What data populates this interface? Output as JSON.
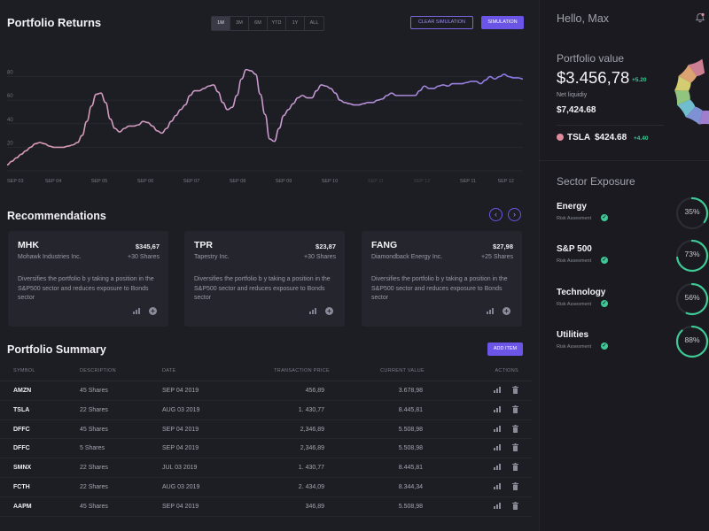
{
  "header": {
    "title": "Portfolio Returns",
    "ranges": [
      "1M",
      "3M",
      "6M",
      "YTD",
      "1Y",
      "ALL"
    ],
    "active_range": "1M",
    "clear_simulation": "CLEAR SIMULATION",
    "simulation": "SIMULATION"
  },
  "chart_data": {
    "type": "line",
    "title": "",
    "xlabel": "",
    "ylabel": "",
    "ylim": [
      0,
      100
    ],
    "yticks": [
      20,
      40,
      60,
      80
    ],
    "x_tick_labels": [
      "SEP 03",
      "SEP 04",
      "SEP 05",
      "SEP 06",
      "SEP 07",
      "SEP 08",
      "SEP 09",
      "SEP 10",
      "SEP 11",
      "SEP 12",
      "SEP 11",
      "SEP 12"
    ],
    "faded_tick_indices": [
      8,
      9
    ],
    "grid": true,
    "colors": {
      "history": "#d99bb0",
      "simulation": "#8a78e8"
    },
    "split_index": 24,
    "x": [
      0,
      0.1,
      0.2,
      0.3,
      0.4,
      0.5,
      0.6,
      0.7,
      0.8,
      0.9,
      1.0,
      1.1,
      1.2,
      1.3,
      1.4,
      1.5,
      1.6,
      1.7,
      1.8,
      1.9,
      2.0,
      2.1,
      2.2,
      2.3,
      2.4,
      2.5,
      2.6,
      2.7,
      2.8,
      2.9,
      3.0,
      3.1,
      3.2,
      3.3,
      3.4,
      3.5,
      3.6,
      3.7,
      3.8,
      3.9,
      4.0,
      4.1,
      4.2,
      4.3,
      4.4,
      4.5,
      4.6,
      4.7,
      4.8,
      4.9,
      5.0,
      5.1,
      5.2,
      5.3,
      5.4,
      5.5,
      5.6,
      5.7,
      5.8,
      5.9,
      6.0,
      6.1,
      6.2,
      6.3,
      6.4,
      6.5,
      6.6,
      6.7,
      6.8,
      6.9,
      7.0,
      7.1,
      7.2,
      7.3,
      7.4,
      7.5,
      7.6,
      7.7,
      7.8,
      7.9,
      8.0,
      8.1,
      8.2,
      8.3,
      8.4,
      8.5,
      8.6,
      8.7,
      8.8,
      8.9,
      9.0,
      9.1,
      9.2,
      9.3,
      9.4,
      9.5,
      9.6,
      9.7,
      9.8,
      9.9,
      10.0,
      10.1,
      10.2,
      10.3,
      10.4,
      10.5,
      10.6,
      10.7,
      10.8,
      10.9,
      11.0
    ],
    "y": [
      5,
      8,
      11,
      14,
      17,
      20,
      23,
      24,
      23,
      21,
      20,
      20,
      20,
      21,
      22,
      24,
      30,
      42,
      55,
      65,
      66,
      58,
      44,
      36,
      33,
      36,
      38,
      38,
      39,
      42,
      41,
      38,
      34,
      32,
      36,
      42,
      47,
      52,
      56,
      64,
      68,
      68,
      70,
      72,
      73,
      67,
      58,
      52,
      54,
      64,
      78,
      86,
      85,
      82,
      65,
      48,
      27,
      25,
      36,
      47,
      52,
      57,
      62,
      64,
      62,
      62,
      68,
      73,
      72,
      70,
      66,
      60,
      58,
      57,
      56,
      56,
      57,
      58,
      58,
      60,
      61,
      64,
      66,
      64,
      64,
      64,
      64,
      64,
      68,
      72,
      70,
      70,
      72,
      73,
      72,
      74,
      74,
      74,
      75,
      76,
      76,
      74,
      77,
      80,
      78,
      80,
      82,
      80,
      79,
      79,
      78
    ]
  },
  "recommendations": {
    "title": "Recommendations",
    "prev_icon": "chevron-left-icon",
    "next_icon": "chevron-right-icon",
    "cards": [
      {
        "symbol": "MHK",
        "price": "$345,67",
        "company": "Mohawk Industries Inc.",
        "shares": "+30 Shares",
        "description": "Diversifies the portfolio b y taking a position in the S&P500 sector and reduces exposure to Bonds sector"
      },
      {
        "symbol": "TPR",
        "price": "$23,87",
        "company": "Tapestry Inc.",
        "shares": "+30 Shares",
        "description": "Diversifies the portfolio b y taking a position in the S&P500 sector and reduces exposure to Bonds sector"
      },
      {
        "symbol": "FANG",
        "price": "$27,98",
        "company": "Diamondback Energy Inc.",
        "shares": "+25 Shares",
        "description": "Diversifies the portfolio b y taking a position in the S&P500 sector and reduces exposure to Bonds sector"
      }
    ]
  },
  "summary": {
    "title": "Portfolio Summary",
    "add_item": "ADD ITEM",
    "columns": [
      "SYMBOL",
      "DESCRIPTION",
      "DATE",
      "TRANSACTION PRICE",
      "CURRENT VALUE",
      "ACTIONS"
    ],
    "rows": [
      {
        "symbol": "AMZN",
        "description": "45 Shares",
        "date": "SEP 04 2019",
        "price": "456,89",
        "value": "3.678,98"
      },
      {
        "symbol": "TSLA",
        "description": "22 Shares",
        "date": "AUG 03 2019",
        "price": "1. 430,77",
        "value": "8.445,81"
      },
      {
        "symbol": "DFFC",
        "description": "45 Shares",
        "date": "SEP 04 2019",
        "price": "2,346,89",
        "value": "5.508,98"
      },
      {
        "symbol": "DFFC",
        "description": "5 Shares",
        "date": "SEP 04 2019",
        "price": "2,346,89",
        "value": "5.508,98"
      },
      {
        "symbol": "SMNX",
        "description": "22 Shares",
        "date": "JUL 03 2019",
        "price": "1. 430,77",
        "value": "8.445,81"
      },
      {
        "symbol": "FCTH",
        "description": "22 Shares",
        "date": "AUG 03 2019",
        "price": "2. 434,09",
        "value": "8.344,34"
      },
      {
        "symbol": "AAPM",
        "description": "45 Shares",
        "date": "SEP 04 2019",
        "price": "346,89",
        "value": "5.508,98"
      }
    ]
  },
  "sidebar": {
    "greeting": "Hello, Max",
    "portfolio_label": "Portfolio value",
    "portfolio_value": "$3.456,78",
    "portfolio_change": "+5.20",
    "net_liquidity_label": "Net liquidiy",
    "net_liquidity_value": "$7,424.68",
    "holding": {
      "symbol": "TSLA",
      "price": "$424.68",
      "change": "+4.40",
      "color": "#e08a9e"
    },
    "donut_colors": [
      "#e08a9e",
      "#f0b27a",
      "#e8e07a",
      "#9ed88a",
      "#7ad0e0",
      "#8a9ee8",
      "#b08ae0"
    ],
    "sector_title": "Sector Exposure",
    "sectors": [
      {
        "name": "Energy",
        "risk": "Risk Assesment",
        "pct": 35,
        "label": "35%"
      },
      {
        "name": "S&P 500",
        "risk": "Risk Assesment",
        "pct": 73,
        "label": "73%"
      },
      {
        "name": "Technology",
        "risk": "Risk Assesment",
        "pct": 56,
        "label": "56%"
      },
      {
        "name": "Utilities",
        "risk": "Risk Assesment",
        "pct": 88,
        "label": "88%"
      }
    ],
    "accent": "#3ec995"
  }
}
